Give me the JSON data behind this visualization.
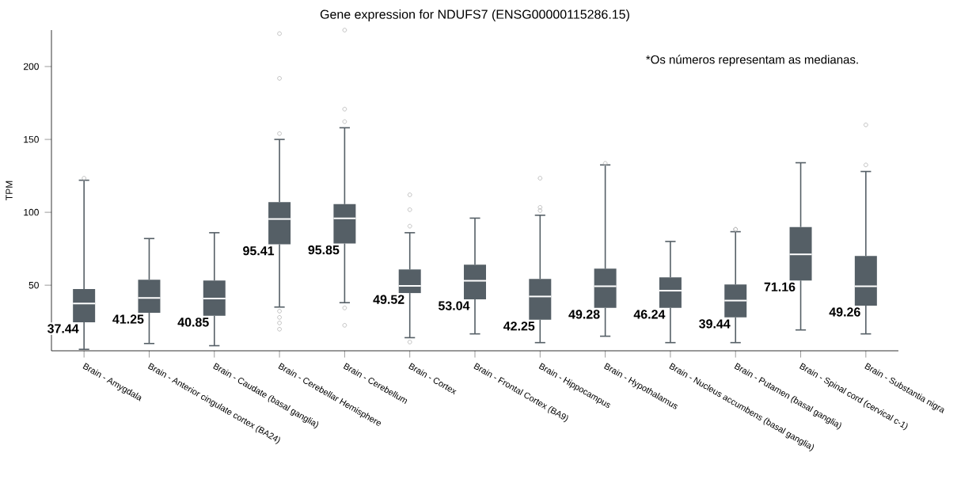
{
  "chart_data": {
    "type": "box",
    "title": "Gene expression for NDUFS7 (ENSG00000115286.15)",
    "ylabel": "TPM",
    "annotations": [
      "*Os números representam as medianas."
    ],
    "categories": [
      "Brain - Amygdala",
      "Brain - Anterior cingulate cortex (BA24)",
      "Brain - Caudate (basal ganglia)",
      "Brain - Cerebellar Hemisphere",
      "Brain - Cerebellum",
      "Brain - Cortex",
      "Brain - Frontal Cortex (BA9)",
      "Brain - Hippocampus",
      "Brain - Hypothalamus",
      "Brain - Nucleus accumbens (basal ganglia)",
      "Brain - Putamen (basal ganglia)",
      "Brain - Spinal cord (cervical c-1)",
      "Brain - Substantia nigra"
    ],
    "color": "#555f66",
    "ylim": [
      5,
      225
    ],
    "yticks": [
      50,
      100,
      150,
      200
    ],
    "value_labels": [
      "37.44",
      "41.25",
      "40.85",
      "95.41",
      "95.85",
      "49.52",
      "53.04",
      "42.25",
      "49.28",
      "46.24",
      "39.44",
      "71.16",
      "49.26"
    ],
    "grid": false,
    "boxes": [
      {
        "low": 6,
        "q1": 24.6,
        "median": 37.44,
        "q3": 47.3,
        "high": 122,
        "outliers": [
          123.4
        ]
      },
      {
        "low": 10,
        "q1": 31.1,
        "median": 41.25,
        "q3": 53.8,
        "high": 82
      },
      {
        "low": 8.5,
        "q1": 29,
        "median": 40.85,
        "q3": 53.2,
        "high": 86
      },
      {
        "low": 35,
        "q1": 78,
        "median": 95.41,
        "q3": 107,
        "high": 150,
        "outliers": [
          222.6,
          191.9,
          154,
          32.2,
          27.9,
          24.1,
          19.8
        ]
      },
      {
        "low": 38,
        "q1": 78.6,
        "median": 95.85,
        "q3": 105.6,
        "high": 158,
        "outliers": [
          225,
          170.8,
          162.2,
          34.4,
          22.5
        ]
      },
      {
        "low": 14,
        "q1": 44.6,
        "median": 49.52,
        "q3": 60.8,
        "high": 86,
        "outliers": [
          112,
          101.8,
          90.5,
          11
        ]
      },
      {
        "low": 16.6,
        "q1": 40.3,
        "median": 53.04,
        "q3": 64,
        "high": 96
      },
      {
        "low": 10.6,
        "q1": 26.3,
        "median": 42.25,
        "q3": 54.3,
        "high": 98,
        "outliers": [
          123.4,
          103.4,
          101.2
        ]
      },
      {
        "low": 15,
        "q1": 34.4,
        "median": 49.28,
        "q3": 61.3,
        "high": 132.5,
        "outliers": [
          133.6
        ]
      },
      {
        "low": 10.6,
        "q1": 34.4,
        "median": 46.24,
        "q3": 55.4,
        "high": 80
      },
      {
        "low": 10.6,
        "q1": 27.9,
        "median": 39.44,
        "q3": 50.5,
        "high": 86.7,
        "outliers": [
          88.3,
          88.3
        ]
      },
      {
        "low": 19.3,
        "q1": 53.2,
        "median": 71.16,
        "q3": 89.9,
        "high": 134
      },
      {
        "low": 16.6,
        "q1": 36,
        "median": 49.26,
        "q3": 70,
        "high": 128,
        "outliers": [
          160,
          132.5
        ]
      }
    ]
  }
}
